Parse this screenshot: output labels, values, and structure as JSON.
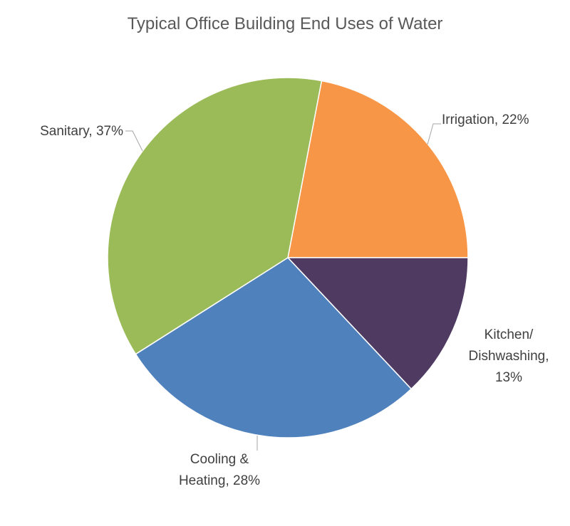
{
  "chart_data": {
    "type": "pie",
    "title": "Typical Office Building End Uses of Water",
    "slices": [
      {
        "label": "Irrigation",
        "value": 22,
        "color": "#f79646",
        "label_lines": [
          "Irrigation, 22%"
        ]
      },
      {
        "label": "Kitchen/ Dishwashing",
        "value": 13,
        "color": "#4f3a62",
        "label_lines": [
          "Kitchen/",
          "Dishwashing,",
          "13%"
        ]
      },
      {
        "label": "Cooling & Heating",
        "value": 28,
        "color": "#4f81bd",
        "label_lines": [
          "Cooling &",
          "Heating, 28%"
        ]
      },
      {
        "label": "Sanitary",
        "value": 37,
        "color": "#9bbb59",
        "label_lines": [
          "Sanitary, 37%"
        ]
      }
    ],
    "legend": "none",
    "data_labels": "category name, percentage"
  }
}
